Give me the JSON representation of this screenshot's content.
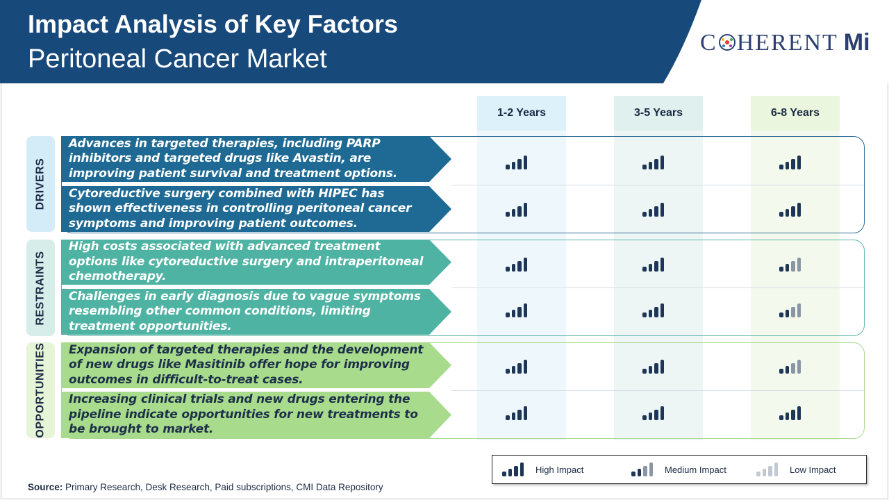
{
  "header": {
    "title": "Impact Analysis of Key Factors",
    "subtitle": "Peritoneal Cancer Market",
    "logo": {
      "text_left": "C",
      "text_mid": "HERENT",
      "text_right": "M",
      "text_i": "i"
    }
  },
  "columns": [
    "1-2 Years",
    "3-5 Years",
    "6-8 Years"
  ],
  "colors": {
    "header_bg": "#17497a",
    "bar_dark": "#1d3557",
    "bar_mid": "#8a96a6",
    "bar_light": "#c3c9d2"
  },
  "groups": [
    {
      "label": "DRIVERS",
      "rows": [
        {
          "text": "Advances in targeted therapies, including PARP inhibitors and targeted drugs like Avastin, are improving patient survival and treatment options.",
          "impacts": [
            "high",
            "high",
            "high"
          ]
        },
        {
          "text": "Cytoreductive surgery combined with HIPEC has shown effectiveness in controlling peritoneal cancer symptoms and improving patient outcomes.",
          "impacts": [
            "high",
            "high",
            "high"
          ]
        }
      ]
    },
    {
      "label": "RESTRAINTS",
      "rows": [
        {
          "text": "High costs associated with advanced treatment options like cytoreductive surgery and intraperitoneal chemotherapy.",
          "impacts": [
            "high",
            "high",
            "medium"
          ]
        },
        {
          "text": "Challenges in early diagnosis due to vague symptoms resembling other common conditions, limiting treatment opportunities.",
          "impacts": [
            "high",
            "high",
            "medium"
          ]
        }
      ]
    },
    {
      "label": "OPPORTUNITIES",
      "rows": [
        {
          "text": "Expansion of targeted therapies and the development of new drugs like Masitinib offer hope for improving outcomes in difficult-to-treat cases.",
          "impacts": [
            "high",
            "high",
            "medium"
          ]
        },
        {
          "text": "Increasing clinical trials and new drugs entering the pipeline indicate opportunities for new treatments to be brought to market.",
          "impacts": [
            "high",
            "high",
            "high"
          ]
        }
      ]
    }
  ],
  "legend": [
    {
      "key": "high",
      "label": "High Impact"
    },
    {
      "key": "medium",
      "label": "Medium Impact"
    },
    {
      "key": "low",
      "label": "Low Impact"
    }
  ],
  "source": {
    "label": "Source:",
    "text": " Primary Research, Desk Research, Paid subscriptions, CMI Data Repository"
  }
}
